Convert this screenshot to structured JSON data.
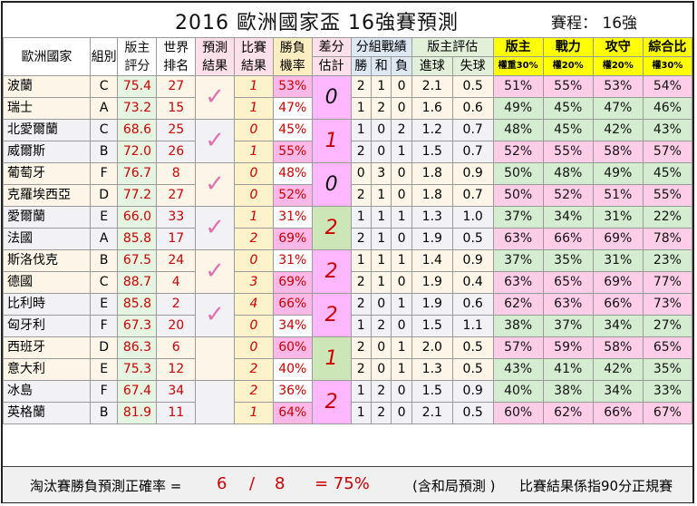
{
  "title": "2016  歐洲國家盃   16強賽預測",
  "stage": "賽程： 16強",
  "headers": {
    "country": "歐洲國家",
    "group": "組別",
    "score": "版主評分",
    "world_rank": "世界排名",
    "pred": "預測結果",
    "result": "比賽結果",
    "prob": "勝負機率",
    "diff_top": "差分",
    "diff_bot": "估計",
    "group_record": "分組戰績",
    "w": "勝",
    "d": "和",
    "l": "負",
    "eval": "版主評估",
    "gf": "進球",
    "ga": "失球",
    "p1": "版主",
    "p1w": "權重30%",
    "p2": "戰力",
    "p2w": "權20%",
    "p3": "攻守",
    "p3w": "權20%",
    "p4": "綜合比",
    "p4w": "權30%"
  },
  "matches": [
    {
      "diff": "0",
      "diff_class": "diff-zero",
      "check": "✓",
      "teams": [
        {
          "name": "波蘭",
          "group": "C",
          "score": "75.4",
          "rank": "27",
          "result": "1",
          "prob": "53%",
          "w": "2",
          "d": "1",
          "l": "0",
          "gf": "2.1",
          "ga": "0.5",
          "p1": "51%",
          "p2": "55%",
          "p3": "53%",
          "p4": "54%",
          "hi": true
        },
        {
          "name": "瑞士",
          "group": "A",
          "score": "73.2",
          "rank": "15",
          "result": "1",
          "prob": "47%",
          "w": "1",
          "d": "2",
          "l": "0",
          "gf": "1.6",
          "ga": "0.6",
          "p1": "49%",
          "p2": "45%",
          "p3": "47%",
          "p4": "46%",
          "hi": false
        }
      ]
    },
    {
      "diff": "1",
      "diff_class": "diff-pink",
      "check": "✓",
      "teams": [
        {
          "name": "北愛爾蘭",
          "group": "C",
          "score": "68.6",
          "rank": "25",
          "result": "0",
          "prob": "45%",
          "w": "1",
          "d": "0",
          "l": "2",
          "gf": "1.2",
          "ga": "0.7",
          "p1": "48%",
          "p2": "45%",
          "p3": "42%",
          "p4": "43%",
          "hi": false
        },
        {
          "name": "威爾斯",
          "group": "B",
          "score": "72.0",
          "rank": "26",
          "result": "1",
          "prob": "55%",
          "w": "2",
          "d": "0",
          "l": "1",
          "gf": "1.5",
          "ga": "0.7",
          "p1": "52%",
          "p2": "55%",
          "p3": "58%",
          "p4": "57%",
          "hi": true
        }
      ]
    },
    {
      "diff": "0",
      "diff_class": "diff-zero",
      "check": "✓",
      "teams": [
        {
          "name": "葡萄牙",
          "group": "F",
          "score": "76.7",
          "rank": "8",
          "result": "0",
          "prob": "48%",
          "w": "0",
          "d": "3",
          "l": "0",
          "gf": "1.8",
          "ga": "0.9",
          "p1": "50%",
          "p2": "48%",
          "p3": "49%",
          "p4": "45%",
          "hi": false
        },
        {
          "name": "克羅埃西亞",
          "group": "D",
          "score": "77.2",
          "rank": "27",
          "result": "0",
          "prob": "52%",
          "w": "2",
          "d": "1",
          "l": "0",
          "gf": "1.8",
          "ga": "0.7",
          "p1": "50%",
          "p2": "52%",
          "p3": "51%",
          "p4": "55%",
          "hi": true
        }
      ]
    },
    {
      "diff": "2",
      "diff_class": "diff-green",
      "check": "✓",
      "teams": [
        {
          "name": "愛爾蘭",
          "group": "E",
          "score": "66.0",
          "rank": "33",
          "result": "1",
          "prob": "31%",
          "w": "1",
          "d": "1",
          "l": "1",
          "gf": "1.3",
          "ga": "1.0",
          "p1": "37%",
          "p2": "34%",
          "p3": "31%",
          "p4": "22%",
          "hi": false
        },
        {
          "name": "法國",
          "group": "A",
          "score": "85.8",
          "rank": "17",
          "result": "2",
          "prob": "69%",
          "w": "2",
          "d": "1",
          "l": "0",
          "gf": "1.9",
          "ga": "0.5",
          "p1": "63%",
          "p2": "66%",
          "p3": "69%",
          "p4": "78%",
          "hi": true
        }
      ]
    },
    {
      "diff": "2",
      "diff_class": "diff-pink",
      "check": "✓",
      "teams": [
        {
          "name": "斯洛伐克",
          "group": "B",
          "score": "67.5",
          "rank": "24",
          "result": "0",
          "prob": "31%",
          "w": "1",
          "d": "1",
          "l": "1",
          "gf": "1.4",
          "ga": "0.9",
          "p1": "37%",
          "p2": "35%",
          "p3": "31%",
          "p4": "23%",
          "hi": false
        },
        {
          "name": "德國",
          "group": "C",
          "score": "88.7",
          "rank": "4",
          "result": "3",
          "prob": "69%",
          "w": "2",
          "d": "1",
          "l": "0",
          "gf": "1.9",
          "ga": "0.4",
          "p1": "63%",
          "p2": "65%",
          "p3": "69%",
          "p4": "77%",
          "hi": true
        }
      ]
    },
    {
      "diff": "2",
      "diff_class": "diff-pink",
      "check": "✓",
      "teams": [
        {
          "name": "比利時",
          "group": "E",
          "score": "85.8",
          "rank": "2",
          "result": "4",
          "prob": "66%",
          "w": "2",
          "d": "0",
          "l": "1",
          "gf": "1.9",
          "ga": "0.6",
          "p1": "62%",
          "p2": "63%",
          "p3": "66%",
          "p4": "73%",
          "hi": true
        },
        {
          "name": "匈牙利",
          "group": "F",
          "score": "67.3",
          "rank": "20",
          "result": "0",
          "prob": "34%",
          "w": "1",
          "d": "2",
          "l": "0",
          "gf": "1.5",
          "ga": "1.1",
          "p1": "38%",
          "p2": "37%",
          "p3": "34%",
          "p4": "27%",
          "hi": false
        }
      ]
    },
    {
      "diff": "1",
      "diff_class": "diff-green",
      "check": "",
      "teams": [
        {
          "name": "西班牙",
          "group": "D",
          "score": "86.3",
          "rank": "6",
          "result": "0",
          "prob": "60%",
          "w": "2",
          "d": "0",
          "l": "1",
          "gf": "2.0",
          "ga": "0.5",
          "p1": "57%",
          "p2": "59%",
          "p3": "58%",
          "p4": "65%",
          "hi": true
        },
        {
          "name": "意大利",
          "group": "E",
          "score": "75.3",
          "rank": "12",
          "result": "2",
          "prob": "40%",
          "w": "2",
          "d": "0",
          "l": "1",
          "gf": "1.3",
          "ga": "0.5",
          "p1": "43%",
          "p2": "41%",
          "p3": "42%",
          "p4": "35%",
          "hi": false
        }
      ]
    },
    {
      "diff": "2",
      "diff_class": "diff-pink",
      "check": "",
      "teams": [
        {
          "name": "冰島",
          "group": "F",
          "score": "67.4",
          "rank": "34",
          "result": "2",
          "prob": "36%",
          "w": "1",
          "d": "2",
          "l": "0",
          "gf": "1.5",
          "ga": "0.9",
          "p1": "40%",
          "p2": "38%",
          "p3": "34%",
          "p4": "33%",
          "hi": false
        },
        {
          "name": "英格蘭",
          "group": "B",
          "score": "81.9",
          "rank": "11",
          "result": "1",
          "prob": "64%",
          "w": "1",
          "d": "2",
          "l": "0",
          "gf": "2.1",
          "ga": "0.5",
          "p1": "60%",
          "p2": "62%",
          "p3": "66%",
          "p4": "67%",
          "hi": true
        }
      ]
    }
  ],
  "footer": {
    "label": "淘汰賽勝負預測正確率 =",
    "num": "6",
    "slash": "/",
    "den": "8",
    "rate": "= 75%",
    "note1": "(含和局預測 )",
    "note2": "比賽結果係指90分正規賽"
  }
}
